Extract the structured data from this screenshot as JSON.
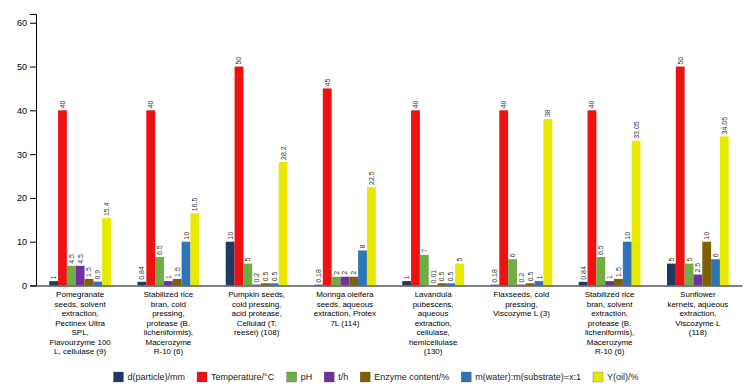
{
  "chart_data": {
    "type": "bar",
    "categories": [
      "Pomegranate\nseeds, solvent\nextraction,\nPectinex Ultra\nSPL,\nFlavourzyme 100\nL, cellulase (9)",
      "Stabilized rice\nbran, cold\npressing,\nprotease (B.\nlicheniformis),\nMacerozyme\nR-10 (6)",
      "Pumpkin seeds,\ncold pressing,\nacid protease,\nCellulad (T.\nreesei) (108)",
      "Moringa oleifera\nseeds, aqueous\nextraction, Protex\n7L (114)",
      "Lavandula\npubescens,\naqueous\nextraction,\ncellulase,\nhemicellulase\n(130)",
      "Flaxseeds, cold\npressing,\nViscozyme L (3)",
      "Stabilized rice\nbran, solvent\nextraction,\nprotease (B.\nlicheniformis),\nMacerozyme\nR-10 (6)",
      "Sunflower\nkernels, aqueous\nextraction,\nViscozyme L\n(118)"
    ],
    "series": [
      {
        "name": "d(particle)/mm",
        "color": "#1f3864",
        "values": [
          1,
          0.84,
          10,
          0.18,
          1,
          0.18,
          0.84,
          5
        ]
      },
      {
        "name": "Temperature/°C",
        "color": "#ee1111",
        "values": [
          40,
          40,
          50,
          45,
          40,
          40,
          40,
          50
        ]
      },
      {
        "name": "pH",
        "color": "#70ad47",
        "values": [
          4.5,
          6.5,
          5,
          2,
          7,
          6,
          6.5,
          5
        ]
      },
      {
        "name": "t/h",
        "color": "#7030a0",
        "values": [
          4.5,
          1,
          0.2,
          2,
          0.01,
          0.2,
          1,
          2.5
        ]
      },
      {
        "name": "Enzyme content/%",
        "color": "#7f6000",
        "values": [
          1.5,
          1.5,
          0.5,
          2,
          0.5,
          0.5,
          1.5,
          10
        ]
      },
      {
        "name": "m(water):m(substrate)=x:1",
        "color": "#2e75b6",
        "values": [
          0.9,
          10,
          0.5,
          8,
          0.5,
          1,
          10,
          6
        ]
      },
      {
        "name": "Y(oil)/%",
        "color": "#e8e800",
        "values": [
          15.4,
          16.5,
          28.2,
          22.5,
          5,
          38,
          33.05,
          34.05
        ]
      }
    ],
    "ylim": [
      0,
      62
    ],
    "yticks": [
      0,
      10,
      20,
      30,
      40,
      50,
      60
    ],
    "grid": false,
    "legend": "bottom",
    "data_labels": true
  }
}
